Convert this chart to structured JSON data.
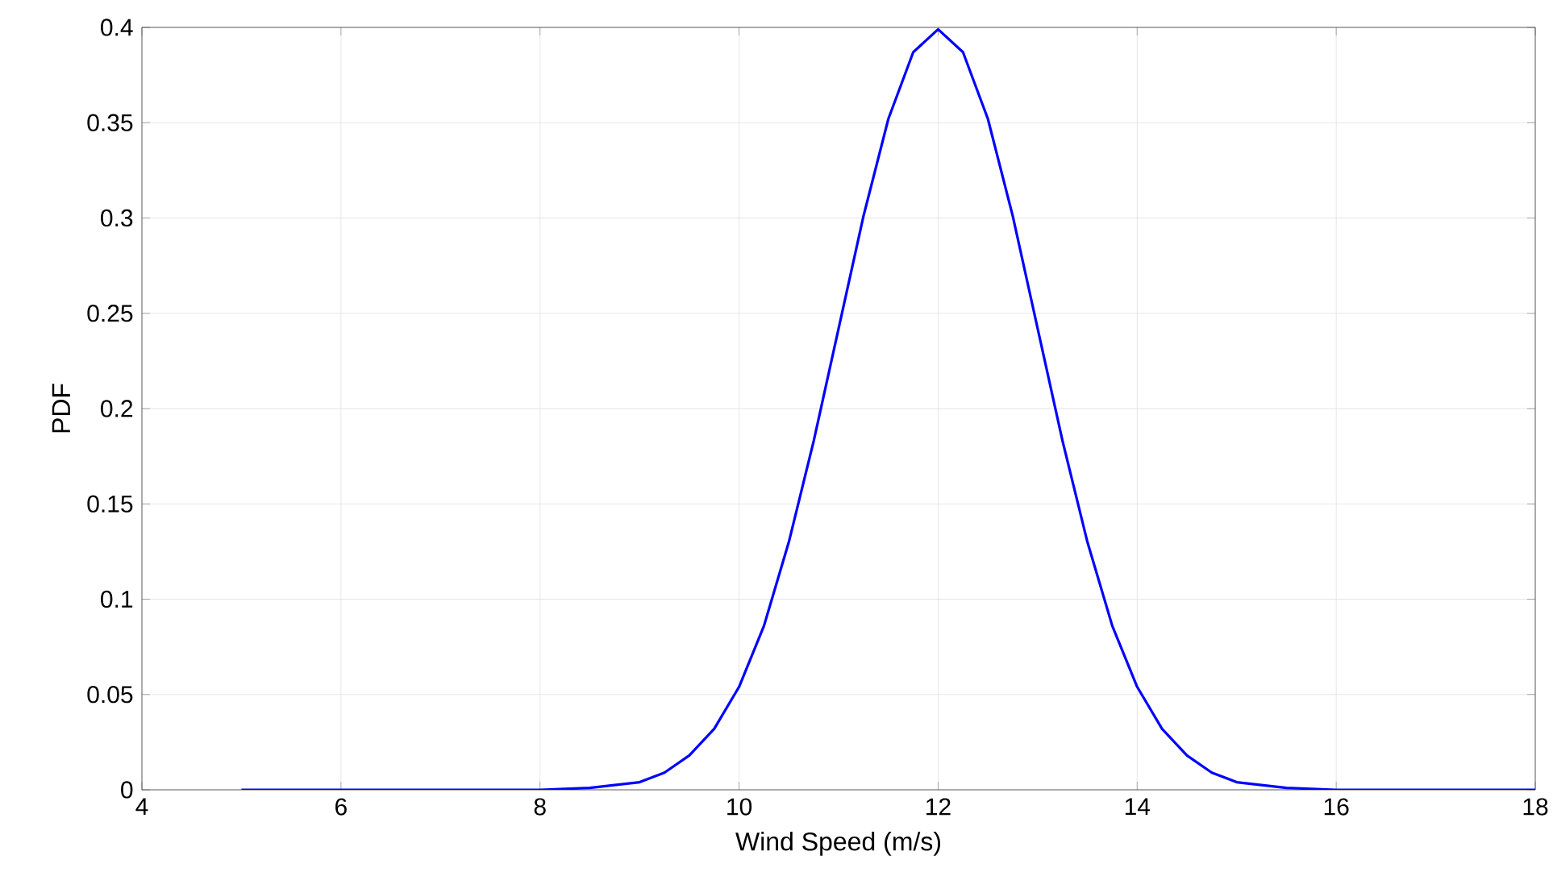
{
  "chart_data": {
    "type": "line",
    "xlabel": "Wind Speed (m/s)",
    "ylabel": "PDF",
    "xlim": [
      4,
      18
    ],
    "xticks": [
      4,
      6,
      8,
      10,
      12,
      14,
      16,
      18
    ],
    "ylim": [
      0,
      0.4
    ],
    "yticks": [
      0,
      0.05,
      0.1,
      0.15,
      0.2,
      0.25,
      0.3,
      0.35,
      0.4
    ],
    "grid": true,
    "marker": "none",
    "line_style": "solid",
    "series": [
      {
        "color": "#0000ff",
        "x": [
          5,
          6,
          7,
          8,
          8.5,
          9,
          9.25,
          9.5,
          9.75,
          10,
          10.25,
          10.5,
          10.75,
          11,
          11.25,
          11.5,
          11.75,
          12,
          12.25,
          12.5,
          12.75,
          13,
          13.25,
          13.5,
          13.75,
          14,
          14.25,
          14.5,
          14.75,
          15,
          15.5,
          16,
          17,
          18
        ],
        "values": [
          0,
          0,
          0,
          0,
          0.001,
          0.004,
          0.009,
          0.018,
          0.032,
          0.054,
          0.086,
          0.13,
          0.183,
          0.242,
          0.301,
          0.352,
          0.387,
          0.399,
          0.387,
          0.352,
          0.301,
          0.242,
          0.183,
          0.13,
          0.086,
          0.054,
          0.032,
          0.018,
          0.009,
          0.004,
          0.001,
          0,
          0,
          0
        ]
      }
    ]
  }
}
